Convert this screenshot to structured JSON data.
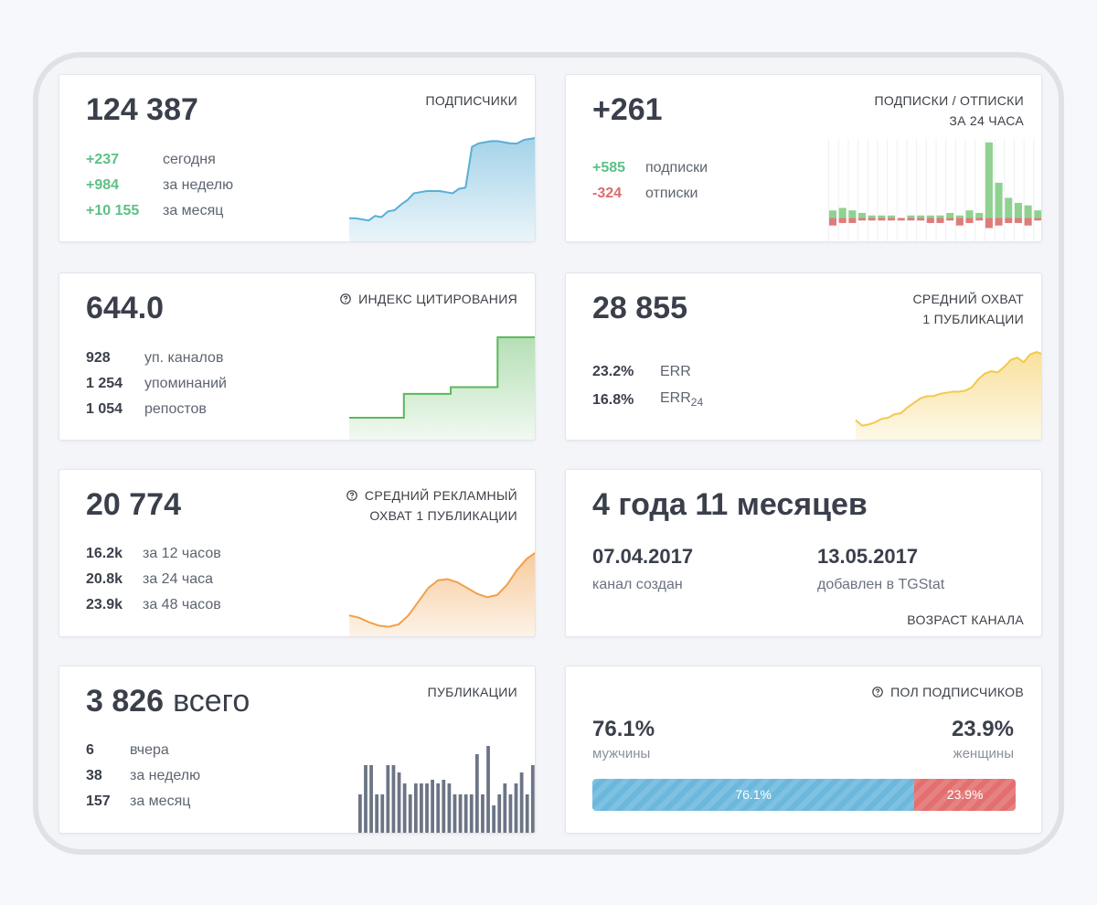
{
  "cards": [
    {
      "title": [
        "ПОДПИСЧИКИ"
      ],
      "value": "124 387",
      "stats": [
        {
          "value": "+237",
          "label": "сегодня",
          "tone": "up"
        },
        {
          "value": "+984",
          "label": "за неделю",
          "tone": "up"
        },
        {
          "value": "+10 155",
          "label": "за месяц",
          "tone": "up"
        }
      ],
      "spark": {
        "type": "area",
        "color": "#5aaed6",
        "ylim": [
          0,
          100
        ],
        "values": [
          22,
          22,
          21,
          20,
          24,
          23,
          28,
          29,
          34,
          38,
          44,
          45,
          46,
          46,
          46,
          45,
          44,
          48,
          49,
          85,
          88,
          89,
          90,
          90,
          89,
          88,
          88,
          91,
          92,
          93
        ]
      }
    },
    {
      "title": [
        "ПОДПИСКИ / ОТПИСКИ",
        "ЗА 24 ЧАСА"
      ],
      "value": "+261",
      "stats": [
        {
          "value": "+585",
          "label": "подписки",
          "tone": "up"
        },
        {
          "value": "-324",
          "label": "отписки",
          "tone": "down"
        }
      ],
      "spark": {
        "type": "bars-pm",
        "ylim": [
          -10,
          35
        ],
        "positive": {
          "color": "#8fd28f",
          "values": [
            3,
            4,
            3,
            2,
            1,
            1,
            1,
            0,
            1,
            1,
            1,
            1,
            2,
            1,
            3,
            2,
            30,
            14,
            8,
            6,
            5,
            3
          ]
        },
        "negative": {
          "color": "#e07b7b",
          "values": [
            -3,
            -2,
            -2,
            -1,
            -1,
            -1,
            -1,
            -1,
            -1,
            -1,
            -2,
            -2,
            -1,
            -3,
            -2,
            -1,
            -4,
            -3,
            -2,
            -2,
            -3,
            -1
          ]
        }
      }
    },
    {
      "title": [
        "ИНДЕКС ЦИТИРОВАНИЯ"
      ],
      "help": true,
      "value": "644.0",
      "stats": [
        {
          "value": "928",
          "label": "уп. каналов",
          "tone": "neutral"
        },
        {
          "value": "1 254",
          "label": "упоминаний",
          "tone": "neutral"
        },
        {
          "value": "1 054",
          "label": "репостов",
          "tone": "neutral"
        }
      ],
      "spark": {
        "type": "step",
        "color": "#5cb85c",
        "ylim": [
          0,
          100
        ],
        "values": [
          21,
          21,
          21,
          21,
          21,
          21,
          21,
          42,
          42,
          42,
          42,
          42,
          42,
          48,
          48,
          48,
          48,
          48,
          48,
          92,
          92,
          92,
          92,
          92,
          92
        ]
      }
    },
    {
      "title": [
        "СРЕДНИЙ ОХВАТ",
        "1 ПУБЛИКАЦИИ"
      ],
      "value": "28 855",
      "stats": [
        {
          "value": "23.2%",
          "label": "ERR",
          "tone": "neutral"
        },
        {
          "value": "16.8%",
          "label": "ERR",
          "sub": "24",
          "tone": "neutral"
        }
      ],
      "spark": {
        "type": "area",
        "color": "#f2c94c",
        "ylim": [
          0,
          100
        ],
        "values": [
          19,
          14,
          15,
          17,
          20,
          21,
          24,
          25,
          30,
          34,
          38,
          40,
          40,
          42,
          43,
          44,
          44,
          45,
          48,
          55,
          60,
          62,
          61,
          66,
          72,
          74,
          70,
          77,
          79,
          77
        ]
      }
    },
    {
      "title": [
        "СРЕДНИЙ РЕКЛАМНЫЙ",
        "ОХВАТ 1 ПУБЛИКАЦИИ"
      ],
      "help": true,
      "value": "20 774",
      "stats": [
        {
          "value": "16.2k",
          "label": "за 12 часов",
          "tone": "neutral"
        },
        {
          "value": "20.8k",
          "label": "за 24 часа",
          "tone": "neutral"
        },
        {
          "value": "23.9k",
          "label": "за 48 часов",
          "tone": "neutral"
        }
      ],
      "spark": {
        "type": "area",
        "color": "#f0a04b",
        "ylim": [
          0,
          100
        ],
        "values": [
          20,
          18,
          14,
          11,
          10,
          12,
          20,
          32,
          44,
          51,
          52,
          49,
          44,
          39,
          36,
          38,
          47,
          60,
          70,
          76
        ]
      }
    },
    {
      "value": "4 года 11 месяцев",
      "dates": [
        {
          "date": "07.04.2017",
          "label": "канал создан"
        },
        {
          "date": "13.05.2017",
          "label": "добавлен в TGStat"
        }
      ],
      "footer": "ВОЗРАСТ КАНАЛА"
    },
    {
      "title": [
        "ПУБЛИКАЦИИ"
      ],
      "value": "3 826",
      "value_suffix": "всего",
      "stats": [
        {
          "value": "6",
          "label": "вчера",
          "tone": "neutral"
        },
        {
          "value": "38",
          "label": "за неделю",
          "tone": "neutral"
        },
        {
          "value": "157",
          "label": "за месяц",
          "tone": "neutral"
        }
      ],
      "spark": {
        "type": "bars",
        "color": "#6b7585",
        "ylim": [
          0,
          100
        ],
        "values": [
          44,
          76,
          76,
          44,
          44,
          76,
          76,
          68,
          56,
          44,
          56,
          56,
          56,
          60,
          56,
          60,
          56,
          44,
          44,
          44,
          44,
          88,
          44,
          97,
          32,
          44,
          56,
          44,
          56,
          68,
          44,
          76
        ]
      }
    },
    {
      "title": [
        "ПОЛ ПОДПИСЧИКОВ"
      ],
      "help": true,
      "parts": [
        {
          "value": 76.1,
          "value_label": "76.1%",
          "label": "мужчины",
          "color": "#6bb8dc"
        },
        {
          "value": 23.9,
          "value_label": "23.9%",
          "label": "женщины",
          "color": "#e46f6f"
        }
      ]
    }
  ]
}
